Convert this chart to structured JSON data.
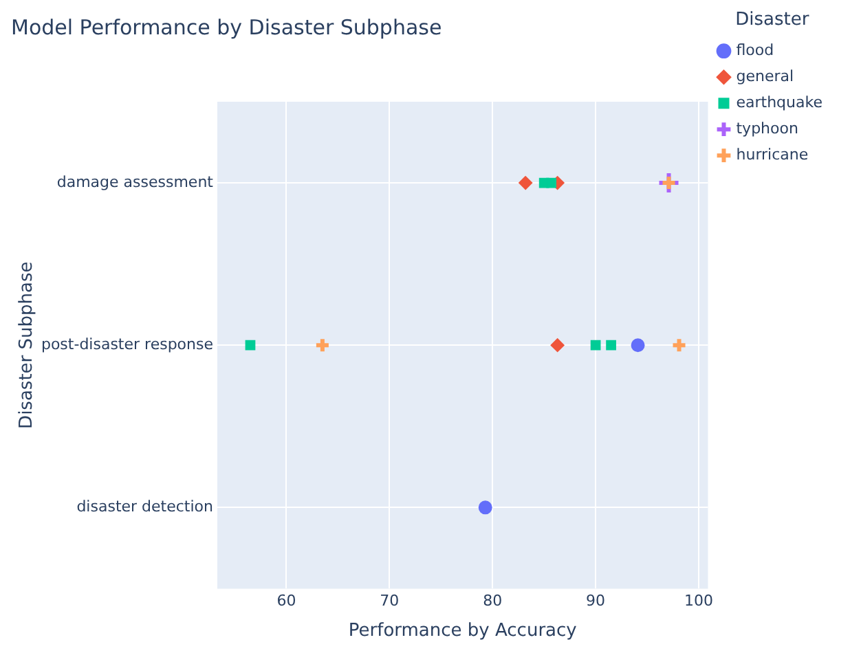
{
  "chart_data": {
    "type": "scatter",
    "orientation": "horizontal",
    "title": "Model Performance by Disaster Subphase",
    "xlabel": "Performance by Accuracy",
    "ylabel": "Disaster Subphase",
    "legend_title": "Disaster",
    "categories": [
      "damage assessment",
      "post-disaster response",
      "disaster detection"
    ],
    "series": [
      {
        "name": "flood",
        "color": "#636efa",
        "marker": "circle",
        "values": [
          null,
          94.1,
          79.3
        ]
      },
      {
        "name": "general",
        "color": "#ef553b",
        "marker": "diamond",
        "values": [
          83.2,
          86.3,
          null
        ]
      },
      {
        "name": "earthquake",
        "color": "#00cc96",
        "marker": "square",
        "values": [
          85,
          56.5,
          null
        ]
      },
      {
        "name": "typhoon",
        "color": "#ab63fa",
        "marker": "cross",
        "values": [
          97.1,
          null,
          null
        ]
      },
      {
        "name": "hurricane",
        "color": "#ffa15a",
        "marker": "cross",
        "values": [
          97.1,
          63.5,
          null
        ]
      },
      {
        "color": "#ef553b",
        "marker": "diamond",
        "values": [
          86.3,
          null,
          null
        ]
      },
      {
        "color": "#00cc96",
        "marker": "square",
        "values": [
          85.7,
          90,
          null
        ]
      },
      {
        "color": "#00cc96",
        "marker": "square",
        "values": [
          null,
          91.5,
          null
        ]
      },
      {
        "color": "#ffa15a",
        "marker": "cross",
        "values": [
          null,
          98.1,
          null
        ]
      }
    ],
    "xlim": [
      53.3,
      100.9
    ],
    "xticks": [
      60,
      70,
      80,
      90,
      100
    ],
    "grid": true,
    "legend": "top right"
  }
}
